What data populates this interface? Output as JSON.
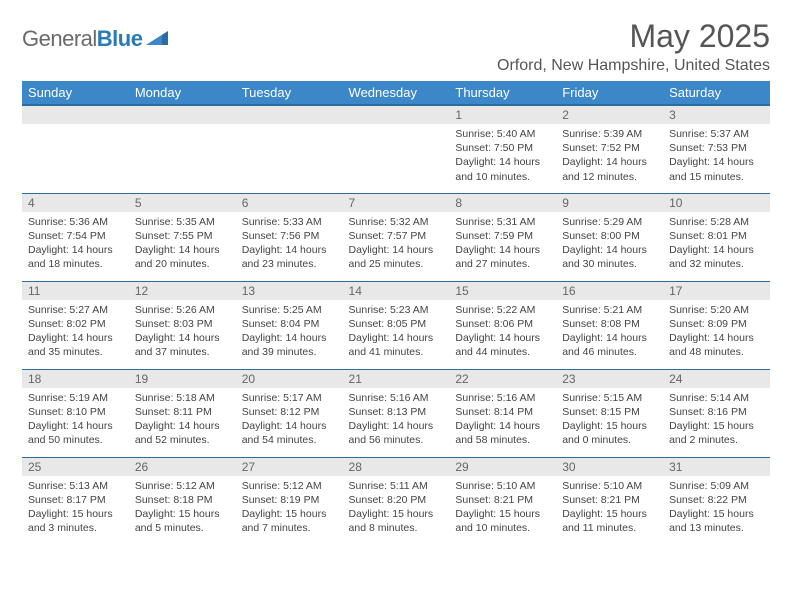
{
  "brand": {
    "name_a": "General",
    "name_b": "Blue"
  },
  "title": "May 2025",
  "location": "Orford, New Hampshire, United States",
  "colors": {
    "header_bg": "#3b87c8",
    "header_border": "#2a6da3",
    "daynum_bg": "#e8e8e8",
    "text": "#444444",
    "brand_gray": "#6a6a6a",
    "brand_blue": "#2a7ab9"
  },
  "weekdays": [
    "Sunday",
    "Monday",
    "Tuesday",
    "Wednesday",
    "Thursday",
    "Friday",
    "Saturday"
  ],
  "weeks": [
    [
      null,
      null,
      null,
      null,
      {
        "n": "1",
        "sr": "5:40 AM",
        "ss": "7:50 PM",
        "dl": "14 hours and 10 minutes."
      },
      {
        "n": "2",
        "sr": "5:39 AM",
        "ss": "7:52 PM",
        "dl": "14 hours and 12 minutes."
      },
      {
        "n": "3",
        "sr": "5:37 AM",
        "ss": "7:53 PM",
        "dl": "14 hours and 15 minutes."
      }
    ],
    [
      {
        "n": "4",
        "sr": "5:36 AM",
        "ss": "7:54 PM",
        "dl": "14 hours and 18 minutes."
      },
      {
        "n": "5",
        "sr": "5:35 AM",
        "ss": "7:55 PM",
        "dl": "14 hours and 20 minutes."
      },
      {
        "n": "6",
        "sr": "5:33 AM",
        "ss": "7:56 PM",
        "dl": "14 hours and 23 minutes."
      },
      {
        "n": "7",
        "sr": "5:32 AM",
        "ss": "7:57 PM",
        "dl": "14 hours and 25 minutes."
      },
      {
        "n": "8",
        "sr": "5:31 AM",
        "ss": "7:59 PM",
        "dl": "14 hours and 27 minutes."
      },
      {
        "n": "9",
        "sr": "5:29 AM",
        "ss": "8:00 PM",
        "dl": "14 hours and 30 minutes."
      },
      {
        "n": "10",
        "sr": "5:28 AM",
        "ss": "8:01 PM",
        "dl": "14 hours and 32 minutes."
      }
    ],
    [
      {
        "n": "11",
        "sr": "5:27 AM",
        "ss": "8:02 PM",
        "dl": "14 hours and 35 minutes."
      },
      {
        "n": "12",
        "sr": "5:26 AM",
        "ss": "8:03 PM",
        "dl": "14 hours and 37 minutes."
      },
      {
        "n": "13",
        "sr": "5:25 AM",
        "ss": "8:04 PM",
        "dl": "14 hours and 39 minutes."
      },
      {
        "n": "14",
        "sr": "5:23 AM",
        "ss": "8:05 PM",
        "dl": "14 hours and 41 minutes."
      },
      {
        "n": "15",
        "sr": "5:22 AM",
        "ss": "8:06 PM",
        "dl": "14 hours and 44 minutes."
      },
      {
        "n": "16",
        "sr": "5:21 AM",
        "ss": "8:08 PM",
        "dl": "14 hours and 46 minutes."
      },
      {
        "n": "17",
        "sr": "5:20 AM",
        "ss": "8:09 PM",
        "dl": "14 hours and 48 minutes."
      }
    ],
    [
      {
        "n": "18",
        "sr": "5:19 AM",
        "ss": "8:10 PM",
        "dl": "14 hours and 50 minutes."
      },
      {
        "n": "19",
        "sr": "5:18 AM",
        "ss": "8:11 PM",
        "dl": "14 hours and 52 minutes."
      },
      {
        "n": "20",
        "sr": "5:17 AM",
        "ss": "8:12 PM",
        "dl": "14 hours and 54 minutes."
      },
      {
        "n": "21",
        "sr": "5:16 AM",
        "ss": "8:13 PM",
        "dl": "14 hours and 56 minutes."
      },
      {
        "n": "22",
        "sr": "5:16 AM",
        "ss": "8:14 PM",
        "dl": "14 hours and 58 minutes."
      },
      {
        "n": "23",
        "sr": "5:15 AM",
        "ss": "8:15 PM",
        "dl": "15 hours and 0 minutes."
      },
      {
        "n": "24",
        "sr": "5:14 AM",
        "ss": "8:16 PM",
        "dl": "15 hours and 2 minutes."
      }
    ],
    [
      {
        "n": "25",
        "sr": "5:13 AM",
        "ss": "8:17 PM",
        "dl": "15 hours and 3 minutes."
      },
      {
        "n": "26",
        "sr": "5:12 AM",
        "ss": "8:18 PM",
        "dl": "15 hours and 5 minutes."
      },
      {
        "n": "27",
        "sr": "5:12 AM",
        "ss": "8:19 PM",
        "dl": "15 hours and 7 minutes."
      },
      {
        "n": "28",
        "sr": "5:11 AM",
        "ss": "8:20 PM",
        "dl": "15 hours and 8 minutes."
      },
      {
        "n": "29",
        "sr": "5:10 AM",
        "ss": "8:21 PM",
        "dl": "15 hours and 10 minutes."
      },
      {
        "n": "30",
        "sr": "5:10 AM",
        "ss": "8:21 PM",
        "dl": "15 hours and 11 minutes."
      },
      {
        "n": "31",
        "sr": "5:09 AM",
        "ss": "8:22 PM",
        "dl": "15 hours and 13 minutes."
      }
    ]
  ],
  "labels": {
    "sunrise": "Sunrise:",
    "sunset": "Sunset:",
    "daylight": "Daylight:"
  }
}
